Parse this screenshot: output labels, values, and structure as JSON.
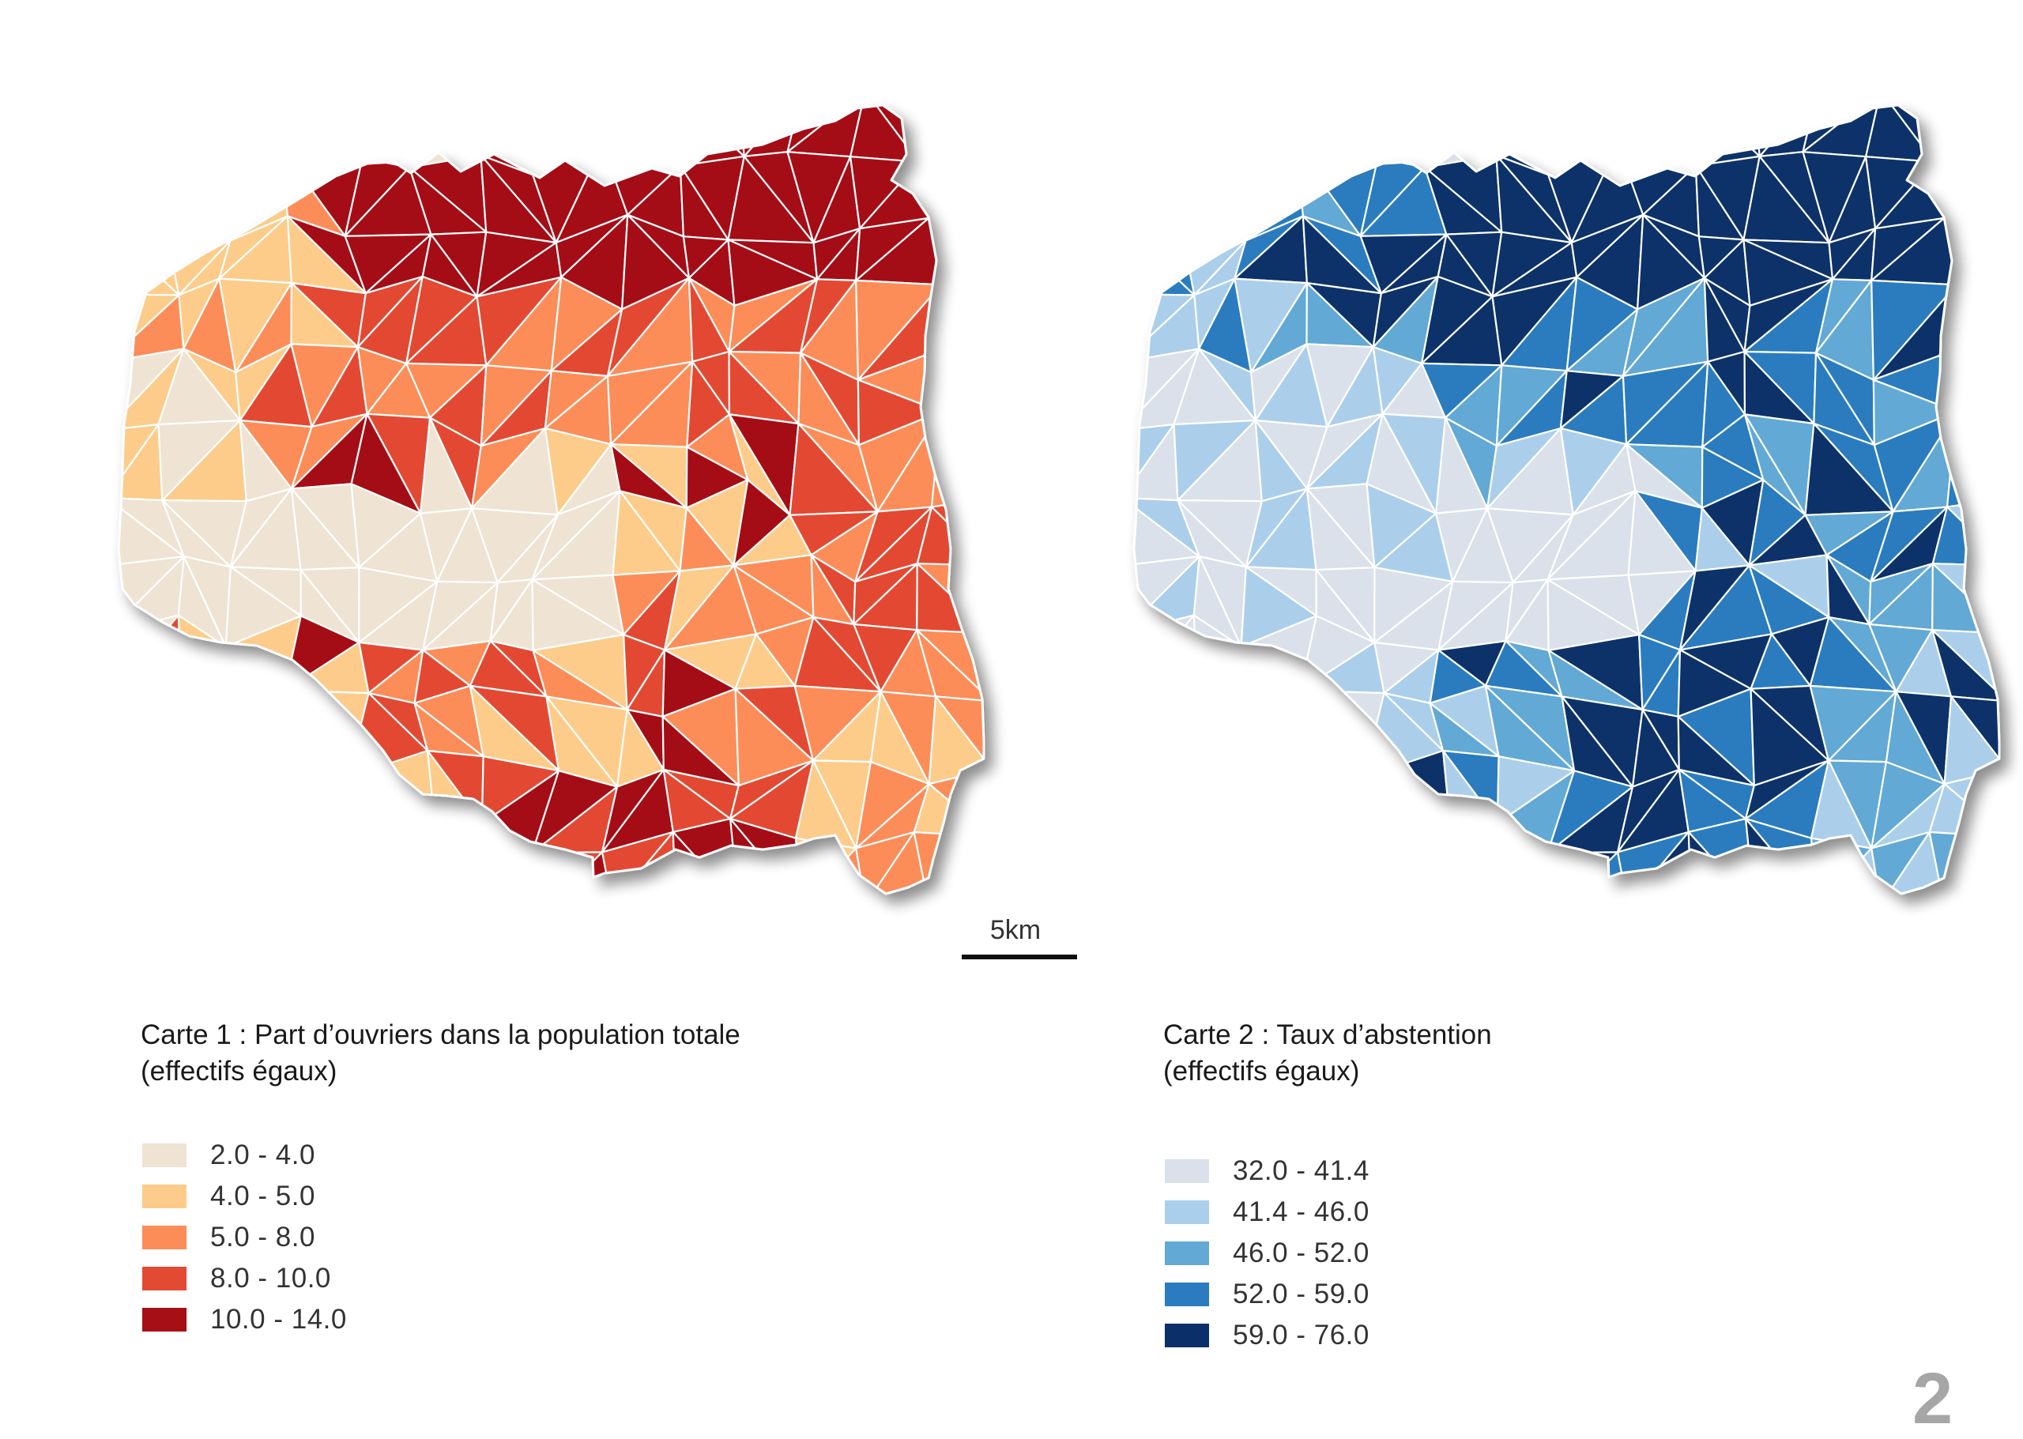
{
  "maps": [
    {
      "id": "carte-1",
      "title_line1": "Carte 1 : Part d’ouvriers dans la population totale",
      "title_line2": "(effectifs égaux)",
      "palette": [
        "#efe3d3",
        "#fdcc8a",
        "#fc8d59",
        "#e34a33",
        "#a50f15"
      ],
      "legend": [
        {
          "label": "2.0 - 4.0",
          "color": "#efe3d3"
        },
        {
          "label": "4.0 - 5.0",
          "color": "#fdcc8a"
        },
        {
          "label": "5.0 - 8.0",
          "color": "#fc8d59"
        },
        {
          "label": "8.0 - 10.0",
          "color": "#e34a33"
        },
        {
          "label": "10.0 - 14.0",
          "color": "#a50f15"
        }
      ]
    },
    {
      "id": "carte-2",
      "title_line1": "Carte 2 : Taux d’abstention",
      "title_line2": "(effectifs égaux)",
      "palette": [
        "#dae1ea",
        "#abcfeb",
        "#62a9d5",
        "#2a7bbf",
        "#0b3069"
      ],
      "legend": [
        {
          "label": "32.0 - 41.4",
          "color": "#dae1ea"
        },
        {
          "label": "41.4 - 46.0",
          "color": "#abcfeb"
        },
        {
          "label": "46.0 - 52.0",
          "color": "#62a9d5"
        },
        {
          "label": "52.0 - 59.0",
          "color": "#2a7bbf"
        },
        {
          "label": "59.0 - 76.0",
          "color": "#0b3069"
        }
      ]
    }
  ],
  "scale": {
    "label": "5km"
  },
  "page_number": "2"
}
